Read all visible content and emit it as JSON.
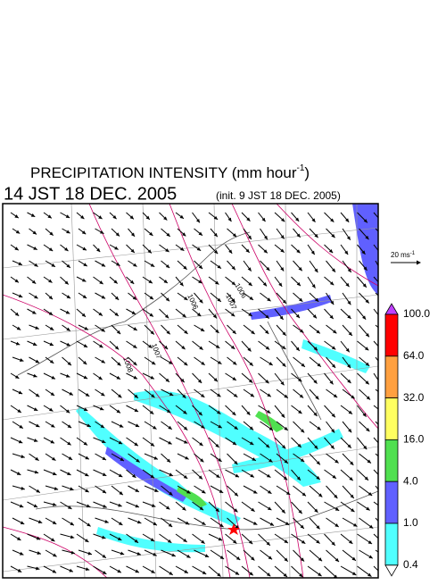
{
  "header": {
    "title": "PRECIPITATION INTENSITY (mm hour",
    "title_superscript": "-1",
    "title_end": ")",
    "valid_time": "14 JST 18 DEC. 2005",
    "init_time": "(init. 9 JST 18 DEC. 2005)"
  },
  "wind_reference": {
    "label": "20 ms",
    "label_superscript": "-1"
  },
  "colorbar": {
    "levels": [
      {
        "label": "100.0",
        "color": "#ff0000"
      },
      {
        "label": "64.0",
        "color": "#ffa040"
      },
      {
        "label": "32.0",
        "color": "#ffff60"
      },
      {
        "label": "16.0",
        "color": "#50e050"
      },
      {
        "label": "4.0",
        "color": "#6060ff"
      },
      {
        "label": "1.0",
        "color": "#50ffff"
      },
      {
        "label": "0.4",
        "color": "#ffffff"
      }
    ],
    "top_color": "#c040ff"
  },
  "isobars": [
    "1008",
    "1007",
    "1006",
    "1007",
    "1006"
  ]
}
